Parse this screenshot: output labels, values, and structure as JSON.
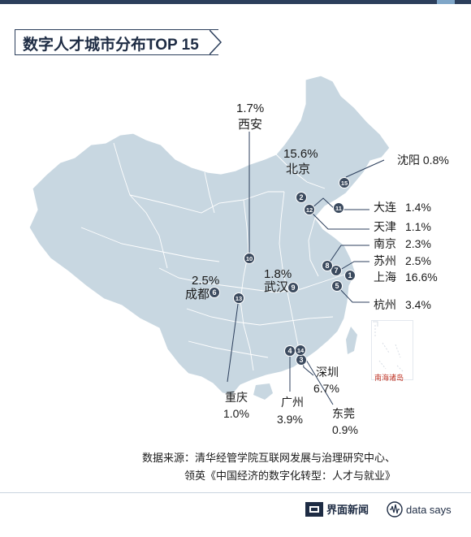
{
  "header": {
    "title": "数字人才城市分布TOP 15"
  },
  "map": {
    "land_color": "#c8d7e1",
    "border_color": "#ffffff",
    "marker_color": "#3b4a5e",
    "leader_color": "#2c3f5c",
    "markers": [
      {
        "rank": "1",
        "city": "上海"
      },
      {
        "rank": "2",
        "city": "北京"
      },
      {
        "rank": "3",
        "city": "深圳"
      },
      {
        "rank": "4",
        "city": "广州"
      },
      {
        "rank": "5",
        "city": "杭州"
      },
      {
        "rank": "6",
        "city": "成都"
      },
      {
        "rank": "7",
        "city": "苏州"
      },
      {
        "rank": "8",
        "city": "南京"
      },
      {
        "rank": "9",
        "city": "武汉"
      },
      {
        "rank": "10",
        "city": "西安"
      },
      {
        "rank": "11",
        "city": "大连"
      },
      {
        "rank": "12",
        "city": "天津"
      },
      {
        "rank": "13",
        "city": "重庆"
      },
      {
        "rank": "14",
        "city": "东莞"
      },
      {
        "rank": "15",
        "city": "沈阳"
      }
    ],
    "labels": {
      "xian_pct": "1.7%",
      "xian": "西安",
      "beijing_pct": "15.6%",
      "beijing": "北京",
      "shenyang": "沈阳 0.8%",
      "dalian": "大连",
      "dalian_pct": "1.4%",
      "tianjin": "天津",
      "tianjin_pct": "1.1%",
      "nanjing": "南京",
      "nanjing_pct": "2.3%",
      "suzhou": "苏州",
      "suzhou_pct": "2.5%",
      "shanghai": "上海",
      "shanghai_pct": "16.6%",
      "hangzhou": "杭州",
      "hangzhou_pct": "3.4%",
      "wuhan_pct": "1.8%",
      "wuhan": "武汉",
      "chengdu_pct": "2.5%",
      "chengdu": "成都",
      "chongqing": "重庆",
      "chongqing_pct": "1.0%",
      "guangzhou": "广州",
      "guangzhou_pct": "3.9%",
      "shenzhen": "深圳",
      "shenzhen_pct": "6.7%",
      "dongguan": "东莞",
      "dongguan_pct": "0.9%"
    },
    "inset_label": "南海诸岛"
  },
  "source": {
    "line1": "数据来源：清华经管学院互联网发展与治理研究中心、",
    "line2": "领英《中国经济的数字化转型：人才与就业》"
  },
  "footer": {
    "brand1": "界面新闻",
    "brand2": "data says"
  }
}
